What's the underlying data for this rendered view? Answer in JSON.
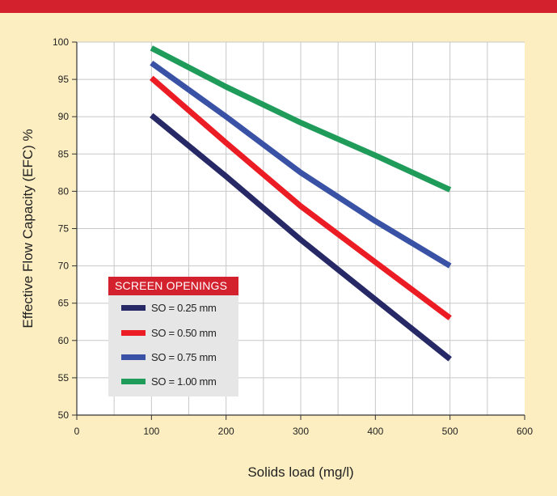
{
  "chart_data": {
    "type": "line",
    "title": "",
    "xlabel": "Solids load (mg/l)",
    "ylabel": "Effective Flow Capacity  (EFC) %",
    "xlim": [
      0,
      600
    ],
    "ylim": [
      50,
      100
    ],
    "xticks": [
      0,
      100,
      200,
      300,
      400,
      500,
      600
    ],
    "yticks": [
      50,
      55,
      60,
      65,
      70,
      75,
      80,
      85,
      90,
      95,
      100
    ],
    "grid": true,
    "legend_title": "SCREEN OPENINGS",
    "legend_position": "bottom-left",
    "series": [
      {
        "name": "SO = 0.25 mm",
        "color": "#262966",
        "x": [
          100,
          200,
          300,
          400,
          500
        ],
        "y": [
          90.2,
          82.0,
          73.5,
          65.5,
          57.5
        ]
      },
      {
        "name": "SO = 0.50 mm",
        "color": "#ec1c24",
        "x": [
          100,
          200,
          300,
          400,
          500
        ],
        "y": [
          95.2,
          86.5,
          78.0,
          70.5,
          63.0
        ]
      },
      {
        "name": "SO = 0.75 mm",
        "color": "#3a52a5",
        "x": [
          100,
          200,
          300,
          400,
          500
        ],
        "y": [
          97.2,
          90.0,
          82.5,
          76.0,
          70.0
        ]
      },
      {
        "name": "SO = 1.00 mm",
        "color": "#1f9b5a",
        "x": [
          100,
          200,
          300,
          400,
          500
        ],
        "y": [
          99.2,
          94.0,
          89.2,
          84.8,
          80.2
        ]
      }
    ]
  }
}
